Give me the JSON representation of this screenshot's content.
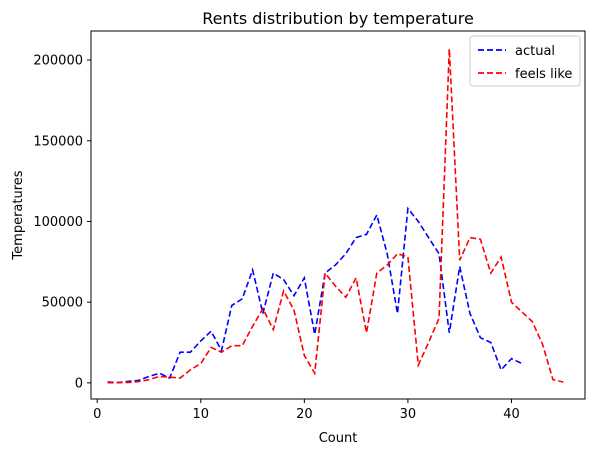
{
  "chart_data": {
    "type": "line",
    "title": "Rents distribution by temperature",
    "xlabel": "Count",
    "ylabel": "Temperatures",
    "xlim": [
      -0.6,
      47.1
    ],
    "ylim": [
      -10000,
      218000
    ],
    "xticks": [
      0,
      10,
      20,
      30,
      40
    ],
    "yticks": [
      0,
      50000,
      100000,
      150000,
      200000
    ],
    "grid": false,
    "legend_position": "top-right",
    "series": [
      {
        "name": "actual",
        "color": "#0000ff",
        "style": "dashed",
        "x": [
          1,
          2,
          3,
          4,
          5,
          6,
          7,
          8,
          9,
          10,
          11,
          12,
          13,
          14,
          15,
          16,
          17,
          18,
          19,
          20,
          21,
          22,
          23,
          24,
          25,
          26,
          27,
          28,
          29,
          30,
          31,
          32,
          33,
          34,
          35,
          36,
          37,
          38,
          39,
          40,
          41
        ],
        "y": [
          500,
          200,
          900,
          1500,
          4000,
          6000,
          3000,
          19000,
          19000,
          26000,
          32000,
          20000,
          48000,
          52000,
          70000,
          43000,
          68000,
          64000,
          54000,
          65000,
          30000,
          68000,
          73000,
          80000,
          90000,
          92000,
          104000,
          80000,
          43000,
          108000,
          100000,
          90000,
          80000,
          31000,
          72000,
          43000,
          28000,
          25000,
          8000,
          15000,
          12000
        ]
      },
      {
        "name": "feels like",
        "color": "#ff0000",
        "style": "dashed",
        "x": [
          1,
          2,
          3,
          4,
          5,
          6,
          7,
          8,
          9,
          10,
          11,
          12,
          13,
          14,
          15,
          16,
          17,
          18,
          19,
          20,
          21,
          22,
          23,
          24,
          25,
          26,
          27,
          28,
          29,
          30,
          31,
          32,
          33,
          34,
          35,
          36,
          37,
          38,
          39,
          40,
          41,
          42,
          43,
          44,
          45
        ],
        "y": [
          100,
          100,
          200,
          800,
          2000,
          4000,
          3500,
          3000,
          8000,
          12000,
          22000,
          19000,
          23000,
          23000,
          35000,
          46000,
          33000,
          57000,
          45000,
          17000,
          6000,
          68000,
          60000,
          53000,
          65000,
          31000,
          68000,
          73000,
          80000,
          78000,
          11000,
          25000,
          40000,
          207000,
          76000,
          90000,
          89000,
          68000,
          78000,
          50000,
          44000,
          38000,
          24000,
          2000,
          500
        ]
      }
    ]
  }
}
